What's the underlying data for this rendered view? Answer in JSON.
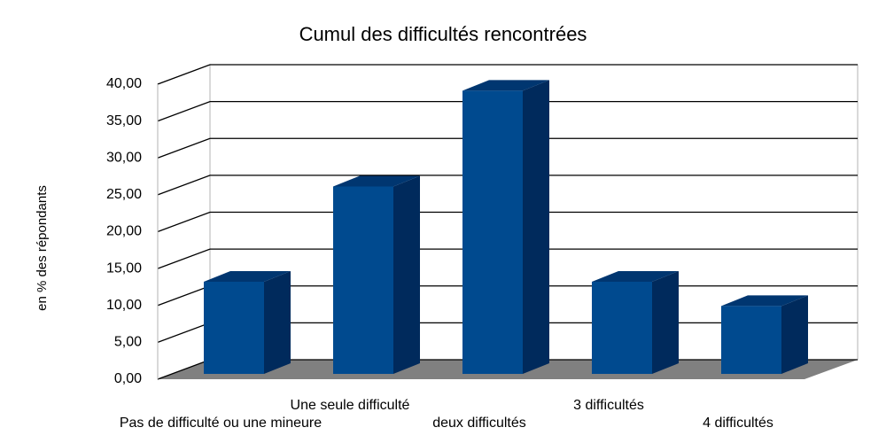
{
  "chart_data": {
    "type": "bar3d",
    "title": "Cumul des difficultés rencontrées",
    "y_label": "en % des répondants",
    "categories": [
      "Pas de difficulté ou une mineure",
      "Une seule difficulté",
      "deux difficultés",
      "3 difficultés",
      "4 difficultés"
    ],
    "values": [
      12.5,
      25.4,
      38.4,
      12.5,
      9.2
    ],
    "color": "#004a8f",
    "ylim": [
      0,
      40
    ],
    "yticks": [
      {
        "value": 0,
        "label": "0,00"
      },
      {
        "value": 5,
        "label": "5,00"
      },
      {
        "value": 10,
        "label": "10,00"
      },
      {
        "value": 15,
        "label": "15,00"
      },
      {
        "value": 20,
        "label": "20,00"
      },
      {
        "value": 25,
        "label": "25,00"
      },
      {
        "value": 30,
        "label": "30,00"
      },
      {
        "value": 35,
        "label": "35,00"
      },
      {
        "value": 40,
        "label": "40,00"
      }
    ],
    "grid": true
  }
}
